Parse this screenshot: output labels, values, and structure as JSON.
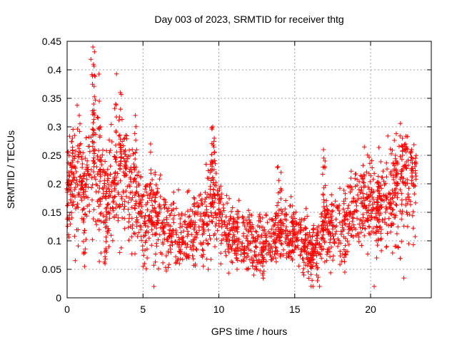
{
  "chart_data": {
    "type": "scatter",
    "title": "Day 003 of 2023, SRMTID for receiver thtg",
    "xlabel": "GPS time / hours",
    "ylabel": "SRMTID / TECUs",
    "xlim": [
      0,
      24
    ],
    "ylim": [
      0,
      0.45
    ],
    "x_ticks": [
      "0",
      "5",
      "10",
      "15",
      "20"
    ],
    "x_tick_values": [
      0,
      5,
      10,
      15,
      20
    ],
    "y_ticks": [
      "0",
      "0.05",
      "0.1",
      "0.15",
      "0.2",
      "0.25",
      "0.3",
      "0.35",
      "0.4",
      "0.45"
    ],
    "y_tick_values": [
      0,
      0.05,
      0.1,
      0.15,
      0.2,
      0.25,
      0.3,
      0.35,
      0.4,
      0.45
    ],
    "grid": true,
    "marker": "plus",
    "marker_color": "#ff0000",
    "series": [
      {
        "x_start": 0,
        "x_end": 23.0,
        "mean_profile": [
          [
            0.0,
            0.18
          ],
          [
            0.5,
            0.2
          ],
          [
            1.0,
            0.19
          ],
          [
            1.5,
            0.2
          ],
          [
            2.0,
            0.24
          ],
          [
            2.5,
            0.17
          ],
          [
            3.0,
            0.2
          ],
          [
            3.5,
            0.22
          ],
          [
            4.0,
            0.2
          ],
          [
            4.5,
            0.17
          ],
          [
            5.0,
            0.15
          ],
          [
            5.5,
            0.15
          ],
          [
            6.0,
            0.13
          ],
          [
            6.5,
            0.12
          ],
          [
            7.0,
            0.11
          ],
          [
            7.5,
            0.11
          ],
          [
            8.0,
            0.11
          ],
          [
            8.5,
            0.13
          ],
          [
            9.0,
            0.13
          ],
          [
            9.5,
            0.16
          ],
          [
            10.0,
            0.15
          ],
          [
            10.5,
            0.12
          ],
          [
            11.0,
            0.11
          ],
          [
            11.5,
            0.1
          ],
          [
            12.0,
            0.1
          ],
          [
            12.5,
            0.1
          ],
          [
            13.0,
            0.1
          ],
          [
            13.5,
            0.1
          ],
          [
            14.0,
            0.11
          ],
          [
            14.5,
            0.11
          ],
          [
            15.0,
            0.11
          ],
          [
            15.5,
            0.1
          ],
          [
            16.0,
            0.08
          ],
          [
            16.5,
            0.1
          ],
          [
            17.0,
            0.12
          ],
          [
            17.5,
            0.13
          ],
          [
            18.0,
            0.12
          ],
          [
            18.5,
            0.14
          ],
          [
            19.0,
            0.15
          ],
          [
            19.5,
            0.16
          ],
          [
            20.0,
            0.16
          ],
          [
            20.5,
            0.15
          ],
          [
            21.0,
            0.17
          ],
          [
            21.5,
            0.18
          ],
          [
            22.0,
            0.2
          ],
          [
            22.5,
            0.19
          ],
          [
            23.0,
            0.2
          ]
        ],
        "spread": 0.035,
        "peaks": [
          [
            0.35,
            0.28
          ],
          [
            0.8,
            0.32
          ],
          [
            1.7,
            0.44
          ],
          [
            1.8,
            0.39
          ],
          [
            1.75,
            0.34
          ],
          [
            2.2,
            0.3
          ],
          [
            3.2,
            0.34
          ],
          [
            3.5,
            0.36
          ],
          [
            3.8,
            0.28
          ],
          [
            4.5,
            0.32
          ],
          [
            5.5,
            0.27
          ],
          [
            5.8,
            0.22
          ],
          [
            9.6,
            0.3
          ],
          [
            9.7,
            0.28
          ],
          [
            9.5,
            0.24
          ],
          [
            13.9,
            0.23
          ],
          [
            14.1,
            0.22
          ],
          [
            16.9,
            0.26
          ],
          [
            17.0,
            0.24
          ],
          [
            19.5,
            0.21
          ],
          [
            20.5,
            0.2
          ],
          [
            21.7,
            0.24
          ],
          [
            22.1,
            0.28
          ],
          [
            22.3,
            0.27
          ],
          [
            22.7,
            0.26
          ],
          [
            0.1,
            0.22
          ],
          [
            2.5,
            0.06
          ],
          [
            1.15,
            0.055
          ]
        ],
        "troughs": [
          [
            1.1,
            0.08
          ],
          [
            2.6,
            0.08
          ],
          [
            5.1,
            0.06
          ],
          [
            7.4,
            0.06
          ],
          [
            9.3,
            0.05
          ],
          [
            11.2,
            0.05
          ],
          [
            12.3,
            0.04
          ],
          [
            12.9,
            0.04
          ],
          [
            15.6,
            0.04
          ],
          [
            16.2,
            0.02
          ],
          [
            16.5,
            0.03
          ],
          [
            18.3,
            0.045
          ],
          [
            20.4,
            0.07
          ]
        ]
      }
    ]
  }
}
